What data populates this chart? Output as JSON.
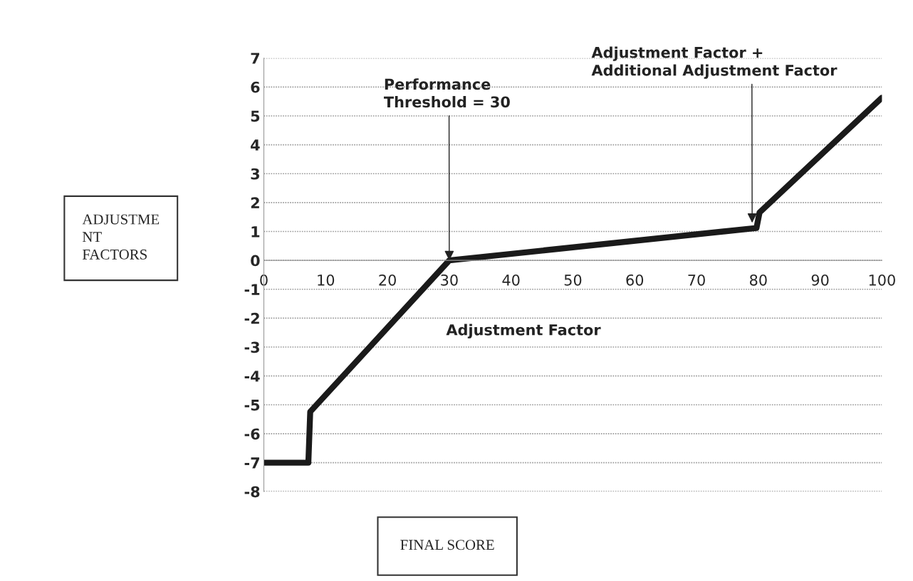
{
  "chart_data": {
    "type": "line",
    "xlabel": "FINAL SCORE",
    "x": [
      0,
      7.2,
      7.5,
      30,
      79.7,
      80.2,
      100
    ],
    "series": [
      {
        "color": "#1a1a1a",
        "values": [
          -7,
          -7,
          -5.24,
          0,
          1.12,
          1.66,
          5.63
        ]
      }
    ],
    "xlim": [
      0,
      100
    ],
    "xticks": [
      0,
      10,
      20,
      30,
      40,
      50,
      60,
      70,
      80,
      90,
      100
    ],
    "ylim": [
      -8,
      7
    ],
    "yticks": [
      -8,
      -7,
      -6,
      -5,
      -4,
      -3,
      -2,
      -1,
      0,
      1,
      2,
      3,
      4,
      5,
      6,
      7
    ],
    "grid": "y",
    "marker": "none",
    "line_style": "solid",
    "annotations": [
      {
        "text": "Performance\nThreshold = 30",
        "x": 30,
        "y": 0
      },
      {
        "text": "Adjustment Factor +\nAdditional Adjustment Factor",
        "x": 79,
        "y": 1.3
      },
      "Adjustment Factor",
      "ADJUSTME\nNT\nFACTORS"
    ]
  }
}
